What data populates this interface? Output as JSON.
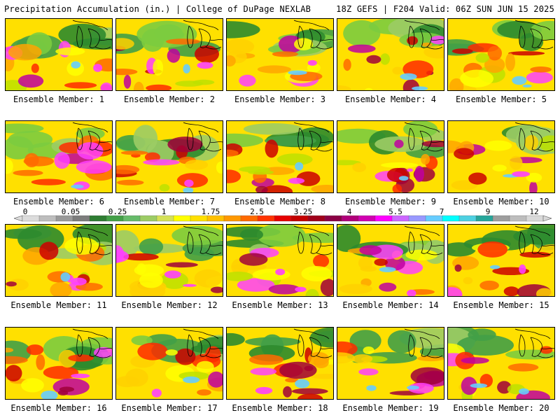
{
  "header": {
    "left": "Precipitation Accumulation (in.) | College of DuPage NEXLAB",
    "right": "18Z GEFS | F204 Valid: 06Z SUN JUN 15 2025"
  },
  "legend": {
    "tick_labels": [
      "0",
      "0.05",
      "0.25",
      "1",
      "1.75",
      "2.5",
      "3.25",
      "4",
      "5.5",
      "7",
      "9",
      "12"
    ],
    "colors": [
      "#dcdcdc",
      "#bdbdbd",
      "#9a9a9a",
      "#7d7d7d",
      "#2e7d32",
      "#43a047",
      "#66bb6a",
      "#9ccc65",
      "#d4e157",
      "#ffff00",
      "#ffe000",
      "#ffc000",
      "#ff9900",
      "#ff6a00",
      "#ff3300",
      "#e60000",
      "#c40000",
      "#a0001a",
      "#8b0045",
      "#b0007a",
      "#d000b0",
      "#ff00ff",
      "#cc66ff",
      "#9999ff",
      "#66ccff",
      "#00ffff",
      "#4dd0e1",
      "#26a69a",
      "#9e9e9e",
      "#bdbdbd",
      "#d9d9d9"
    ]
  },
  "members": [
    {
      "label": "Ensemble Member: 1"
    },
    {
      "label": "Ensemble Member: 2"
    },
    {
      "label": "Ensemble Member: 3"
    },
    {
      "label": "Ensemble Member: 4"
    },
    {
      "label": "Ensemble Member: 5"
    },
    {
      "label": "Ensemble Member: 6"
    },
    {
      "label": "Ensemble Member: 7"
    },
    {
      "label": "Ensemble Member: 8"
    },
    {
      "label": "Ensemble Member: 9"
    },
    {
      "label": "Ensemble Member: 10"
    },
    {
      "label": "Ensemble Member: 11"
    },
    {
      "label": "Ensemble Member: 12"
    },
    {
      "label": "Ensemble Member: 13"
    },
    {
      "label": "Ensemble Member: 14"
    },
    {
      "label": "Ensemble Member: 15"
    },
    {
      "label": "Ensemble Member: 16"
    },
    {
      "label": "Ensemble Member: 17"
    },
    {
      "label": "Ensemble Member: 18"
    },
    {
      "label": "Ensemble Member: 19"
    },
    {
      "label": "Ensemble Member: 20"
    }
  ]
}
